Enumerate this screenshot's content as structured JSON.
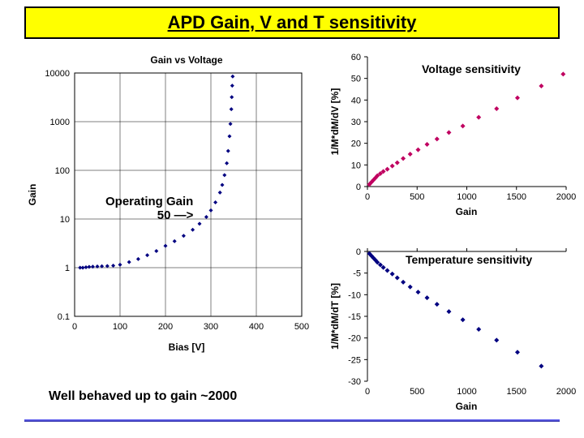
{
  "title": "APD Gain, V and T sensitivity",
  "left_chart": {
    "type": "scatter-log",
    "title": "Gain vs Voltage",
    "xlabel": "Bias [V]",
    "ylabel": "Gain",
    "xlim": [
      0,
      500
    ],
    "xtick_step": 100,
    "ylim_log": [
      0.1,
      10000
    ],
    "yticks": [
      0.1,
      1,
      10,
      100,
      1000,
      10000
    ],
    "ytick_labels": [
      "0.1",
      "1",
      "10",
      "100",
      "1000",
      "10000"
    ],
    "marker_color": "#000080",
    "marker_size": 3,
    "data": [
      [
        12,
        1
      ],
      [
        18,
        1
      ],
      [
        25,
        1.02
      ],
      [
        32,
        1.04
      ],
      [
        40,
        1.05
      ],
      [
        50,
        1.06
      ],
      [
        60,
        1.07
      ],
      [
        72,
        1.08
      ],
      [
        85,
        1.1
      ],
      [
        100,
        1.15
      ],
      [
        120,
        1.3
      ],
      [
        140,
        1.5
      ],
      [
        160,
        1.8
      ],
      [
        180,
        2.2
      ],
      [
        200,
        2.8
      ],
      [
        220,
        3.5
      ],
      [
        240,
        4.5
      ],
      [
        260,
        6
      ],
      [
        275,
        8
      ],
      [
        290,
        11
      ],
      [
        300,
        15
      ],
      [
        310,
        22
      ],
      [
        320,
        35
      ],
      [
        325,
        50
      ],
      [
        330,
        80
      ],
      [
        335,
        140
      ],
      [
        338,
        250
      ],
      [
        341,
        500
      ],
      [
        343,
        900
      ],
      [
        345,
        1800
      ],
      [
        346,
        3200
      ],
      [
        347,
        5500
      ],
      [
        348,
        8500
      ]
    ],
    "annotation": "Operating Gain",
    "annotation2": "50    —>",
    "grid_color": "#000000",
    "background_color": "#ffffff"
  },
  "top_right_chart": {
    "type": "scatter",
    "label": "Voltage sensitivity",
    "xlabel": "Gain",
    "ylabel": "1/M*dM/dV [%]",
    "xlim": [
      0,
      2000
    ],
    "xtick_step": 500,
    "ylim": [
      0,
      60
    ],
    "ytick_step": 10,
    "marker_color": "#c00060",
    "marker_size": 4,
    "data": [
      [
        20,
        1
      ],
      [
        40,
        2
      ],
      [
        60,
        3
      ],
      [
        80,
        4
      ],
      [
        100,
        5
      ],
      [
        130,
        6
      ],
      [
        160,
        7
      ],
      [
        200,
        8
      ],
      [
        250,
        9.5
      ],
      [
        300,
        11
      ],
      [
        360,
        13
      ],
      [
        430,
        15
      ],
      [
        510,
        17
      ],
      [
        600,
        19.5
      ],
      [
        700,
        22
      ],
      [
        820,
        25
      ],
      [
        960,
        28
      ],
      [
        1120,
        32
      ],
      [
        1300,
        36
      ],
      [
        1510,
        41
      ],
      [
        1750,
        46.5
      ],
      [
        1970,
        52
      ]
    ],
    "background_color": "#ffffff"
  },
  "bottom_right_chart": {
    "type": "scatter",
    "label": "Temperature sensitivity",
    "xlabel": "Gain",
    "ylabel": "1/M*dM/dT [%]",
    "xlim": [
      0,
      2000
    ],
    "xtick_step": 500,
    "ylim": [
      -30,
      0
    ],
    "ytick_step": 5,
    "marker_color": "#000080",
    "marker_size": 4,
    "data": [
      [
        20,
        -0.5
      ],
      [
        40,
        -1
      ],
      [
        60,
        -1.5
      ],
      [
        80,
        -2
      ],
      [
        100,
        -2.5
      ],
      [
        130,
        -3.1
      ],
      [
        160,
        -3.7
      ],
      [
        200,
        -4.4
      ],
      [
        250,
        -5.2
      ],
      [
        300,
        -6.1
      ],
      [
        360,
        -7.1
      ],
      [
        430,
        -8.2
      ],
      [
        510,
        -9.4
      ],
      [
        600,
        -10.7
      ],
      [
        700,
        -12.2
      ],
      [
        820,
        -13.9
      ],
      [
        960,
        -15.8
      ],
      [
        1120,
        -18
      ],
      [
        1300,
        -20.5
      ],
      [
        1510,
        -23.3
      ],
      [
        1750,
        -26.5
      ]
    ],
    "background_color": "#ffffff"
  },
  "bottom_note": "Well behaved up to gain ~2000"
}
